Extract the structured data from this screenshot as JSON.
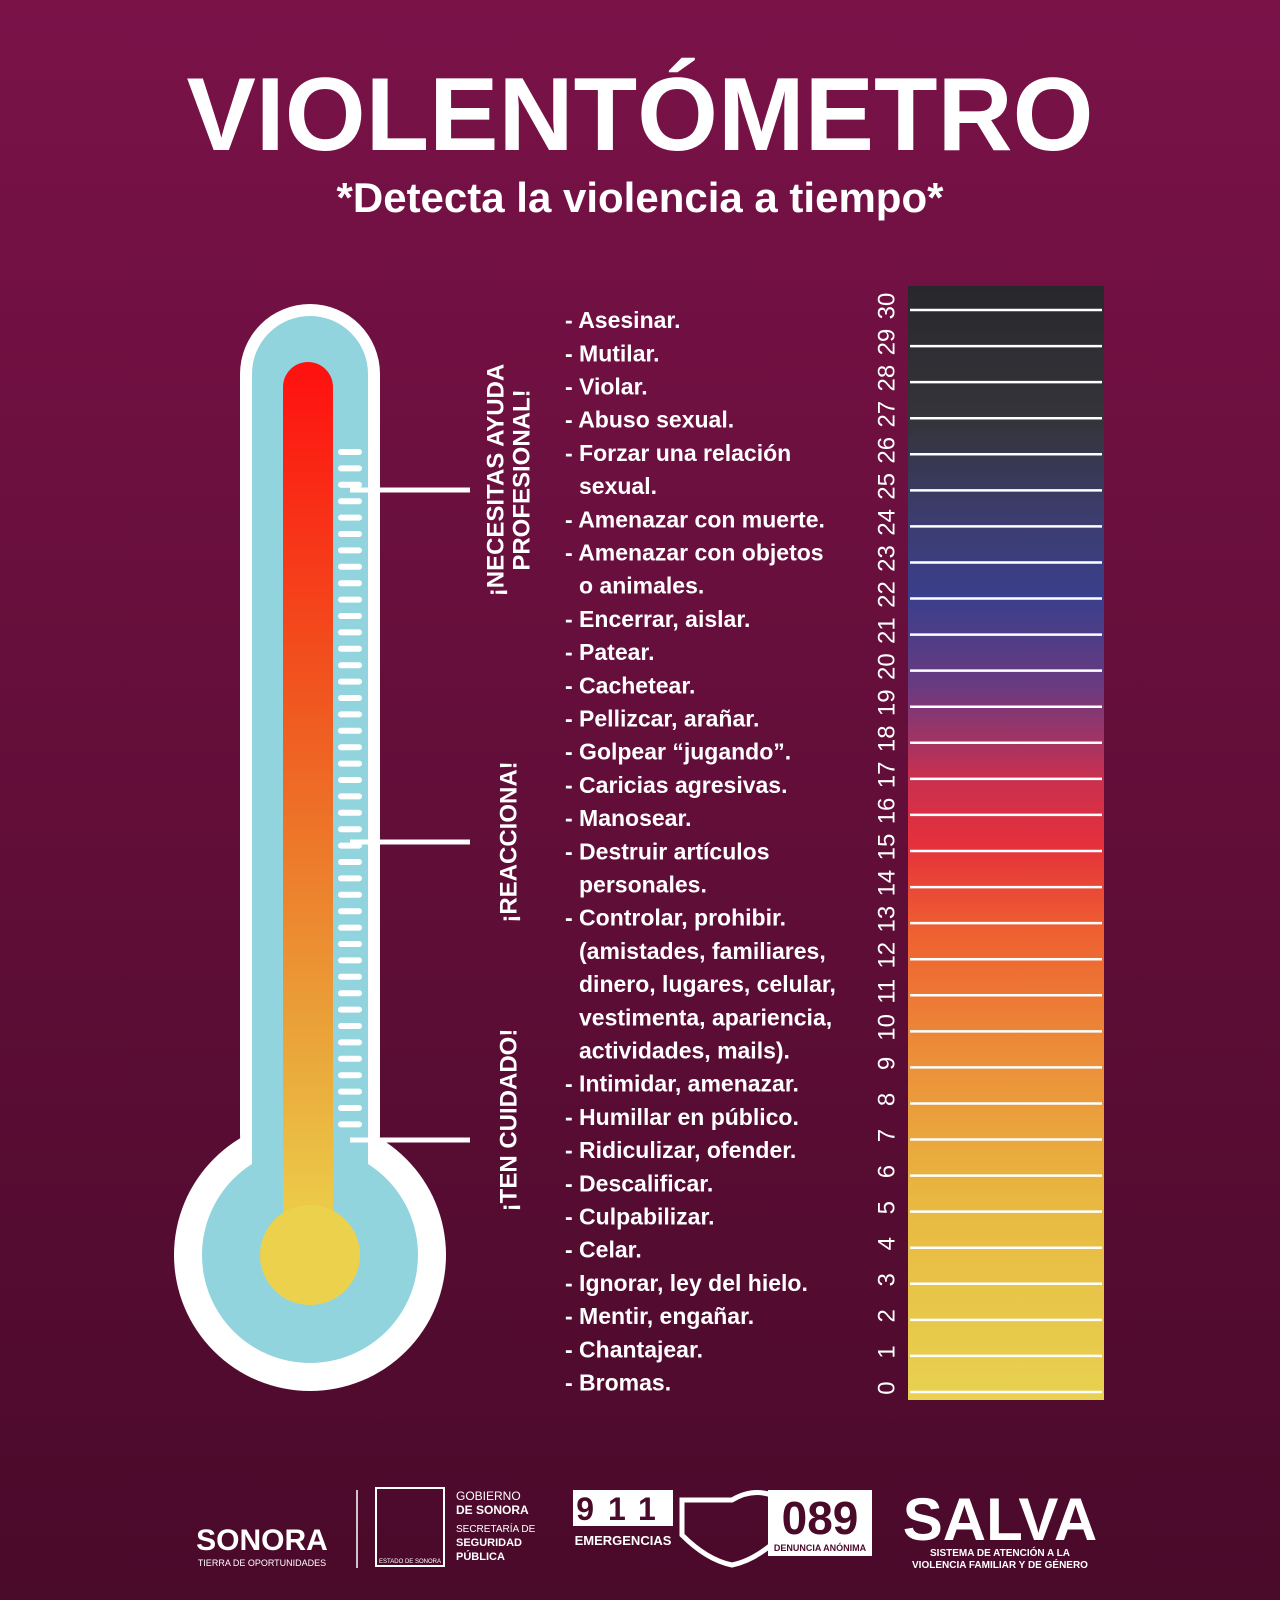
{
  "header": {
    "title": "VIOLENTÓMETRO",
    "subtitle": "*Detecta la violencia a tiempo*"
  },
  "stages": [
    {
      "lines": [
        "¡NECESITAS AYUDA",
        "PROFESIONAL!"
      ]
    },
    {
      "lines": [
        "¡REACCIONA!"
      ]
    },
    {
      "lines": [
        "¡TEN CUIDADO!"
      ]
    }
  ],
  "items": [
    [
      "- Asesinar."
    ],
    [
      "- Mutilar."
    ],
    [
      "- Violar."
    ],
    [
      "- Abuso sexual."
    ],
    [
      "- Forzar una relación",
      "sexual."
    ],
    [
      "- Amenazar con muerte."
    ],
    [
      "- Amenazar con objetos",
      "o animales."
    ],
    [
      "- Encerrar, aislar."
    ],
    [
      "- Patear."
    ],
    [
      "- Cachetear."
    ],
    [
      "- Pellizcar, arañar."
    ],
    [
      "- Golpear “jugando”."
    ],
    [
      "- Caricias agresivas."
    ],
    [
      "- Manosear."
    ],
    [
      "- Destruir artículos",
      "personales."
    ],
    [
      "- Controlar, prohibir.",
      "(amistades, familiares,",
      "dinero, lugares, celular,",
      "vestimenta, apariencia,",
      "actividades, mails)."
    ],
    [
      "- Intimidar, amenazar."
    ],
    [
      "- Humillar en público."
    ],
    [
      "- Ridiculizar, ofender."
    ],
    [
      "- Descalificar."
    ],
    [
      "- Culpabilizar."
    ],
    [
      "- Celar."
    ],
    [
      "- Ignorar, ley del hielo."
    ],
    [
      "- Mentir, engañar."
    ],
    [
      "- Chantajear."
    ],
    [
      "- Bromas."
    ]
  ],
  "scale": [
    0,
    1,
    2,
    3,
    4,
    5,
    6,
    7,
    8,
    9,
    10,
    11,
    12,
    13,
    14,
    15,
    16,
    17,
    18,
    19,
    20,
    21,
    22,
    23,
    24,
    25,
    26,
    27,
    28,
    29,
    30
  ],
  "footer": {
    "sonora": "SONORA",
    "sonora_tag": "TIERRA DE OPORTUNIDADES",
    "gob": "GOBIERNO",
    "gob2": "DE SONORA",
    "ssp1": "SECRETARÍA DE",
    "ssp2": "SEGURIDAD",
    "ssp3": "PÚBLICA",
    "estado": "ESTADO DE SONORA",
    "n911": "911",
    "emergencias": "EMERGENCIAS",
    "n089": "089",
    "denuncia": "DENUNCIA ANÓNIMA",
    "salva": "SALVA",
    "salva_sub1": "SISTEMA DE ATENCIÓN A LA",
    "salva_sub2": "VIOLENCIA FAMILIAR Y DE GÉNERO"
  }
}
